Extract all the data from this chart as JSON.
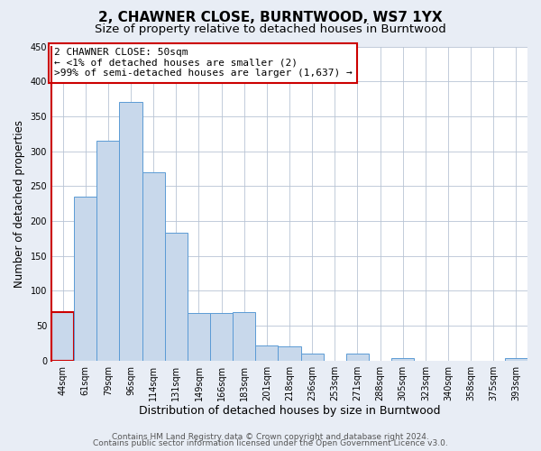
{
  "title": "2, CHAWNER CLOSE, BURNTWOOD, WS7 1YX",
  "subtitle": "Size of property relative to detached houses in Burntwood",
  "xlabel": "Distribution of detached houses by size in Burntwood",
  "ylabel": "Number of detached properties",
  "bar_labels": [
    "44sqm",
    "61sqm",
    "79sqm",
    "96sqm",
    "114sqm",
    "131sqm",
    "149sqm",
    "166sqm",
    "183sqm",
    "201sqm",
    "218sqm",
    "236sqm",
    "253sqm",
    "271sqm",
    "288sqm",
    "305sqm",
    "323sqm",
    "340sqm",
    "358sqm",
    "375sqm",
    "393sqm"
  ],
  "bar_values": [
    70,
    235,
    315,
    370,
    270,
    183,
    68,
    68,
    70,
    22,
    20,
    10,
    0,
    10,
    0,
    3,
    0,
    0,
    0,
    0,
    4
  ],
  "bar_color": "#c8d8eb",
  "bar_edge_color": "#5b9bd5",
  "highlight_bar_index": 0,
  "highlight_bar_edge_color": "#cc0000",
  "annotation_title": "2 CHAWNER CLOSE: 50sqm",
  "annotation_line1": "← <1% of detached houses are smaller (2)",
  "annotation_line2": ">99% of semi-detached houses are larger (1,637) →",
  "annotation_box_facecolor": "#ffffff",
  "annotation_box_edgecolor": "#cc0000",
  "ylim": [
    0,
    450
  ],
  "yticks": [
    0,
    50,
    100,
    150,
    200,
    250,
    300,
    350,
    400,
    450
  ],
  "footer_line1": "Contains HM Land Registry data © Crown copyright and database right 2024.",
  "footer_line2": "Contains public sector information licensed under the Open Government Licence v3.0.",
  "bg_color": "#e8edf5",
  "plot_bg_color": "#ffffff",
  "title_fontsize": 11,
  "subtitle_fontsize": 9.5,
  "xlabel_fontsize": 9,
  "ylabel_fontsize": 8.5,
  "tick_fontsize": 7,
  "annotation_fontsize": 8,
  "footer_fontsize": 6.5
}
